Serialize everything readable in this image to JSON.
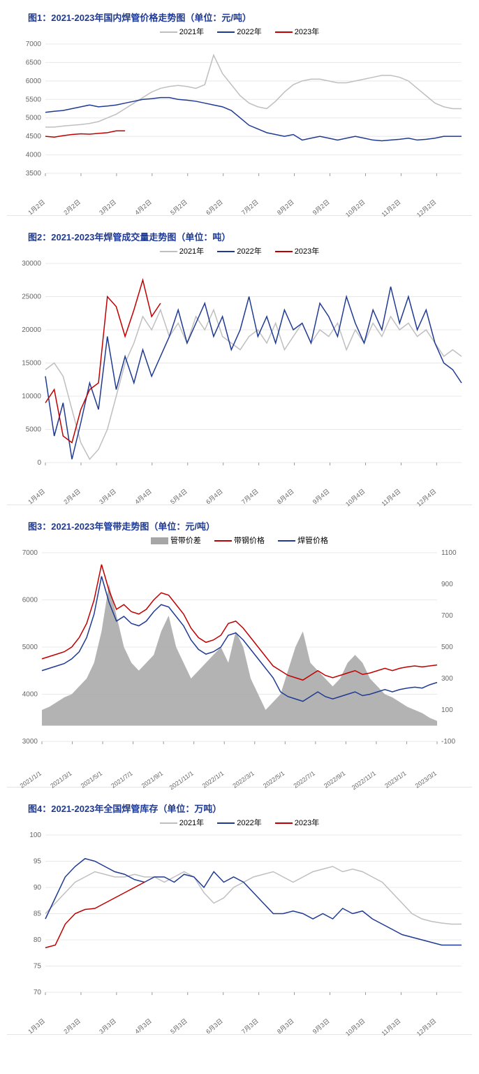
{
  "colors": {
    "title": "#1f3a93",
    "grid": "#e8e8e8",
    "axis_text": "#666666",
    "s2021": "#bfbfbf",
    "s2022": "#1f3a93",
    "s2023": "#c00000",
    "area_fill": "#a6a6a6",
    "red_line": "#c00000",
    "blue_line": "#1f3a93"
  },
  "chart1": {
    "title": "图1：2021-2023年国内焊管价格走势图（单位：元/吨）",
    "type": "line",
    "legend": [
      "2021年",
      "2022年",
      "2023年"
    ],
    "legend_colors": [
      "#bfbfbf",
      "#1f3a93",
      "#c00000"
    ],
    "ylim": [
      3500,
      7000
    ],
    "ytick_step": 500,
    "xlabels": [
      "1月2日",
      "2月2日",
      "3月2日",
      "4月2日",
      "5月2日",
      "6月2日",
      "7月2日",
      "8月2日",
      "9月2日",
      "10月2日",
      "11月2日",
      "12月2日"
    ],
    "series": {
      "2021": [
        4750,
        4750,
        4780,
        4800,
        4820,
        4850,
        4900,
        5000,
        5100,
        5250,
        5400,
        5550,
        5700,
        5800,
        5850,
        5880,
        5850,
        5800,
        5900,
        6700,
        6200,
        5900,
        5600,
        5400,
        5300,
        5250,
        5450,
        5700,
        5900,
        6000,
        6050,
        6050,
        6000,
        5950,
        5950,
        6000,
        6050,
        6100,
        6150,
        6150,
        6100,
        6000,
        5800,
        5600,
        5400,
        5300,
        5250,
        5250
      ],
      "2022": [
        5150,
        5180,
        5200,
        5250,
        5300,
        5350,
        5300,
        5320,
        5350,
        5400,
        5450,
        5500,
        5520,
        5550,
        5550,
        5500,
        5480,
        5450,
        5400,
        5350,
        5300,
        5200,
        5000,
        4800,
        4700,
        4600,
        4550,
        4500,
        4550,
        4400,
        4450,
        4500,
        4450,
        4400,
        4450,
        4500,
        4450,
        4400,
        4380,
        4400,
        4420,
        4450,
        4400,
        4420,
        4450,
        4500,
        4500,
        4500
      ],
      "2023": [
        4500,
        4480,
        4520,
        4550,
        4570,
        4560,
        4580,
        4600,
        4650,
        4650
      ]
    },
    "title_fontsize": 13,
    "label_fontsize": 10,
    "background_color": "#ffffff",
    "grid_color": "#e8e8e8",
    "line_width": 1.5
  },
  "chart2": {
    "title": "图2：2021-2023年焊管成交量走势图（单位：吨）",
    "type": "line",
    "legend": [
      "2021年",
      "2022年",
      "2023年"
    ],
    "legend_colors": [
      "#bfbfbf",
      "#1f3a93",
      "#c00000"
    ],
    "ylim": [
      0,
      30000
    ],
    "ytick_step": 5000,
    "xlabels": [
      "1月4日",
      "2月4日",
      "3月4日",
      "4月4日",
      "5月4日",
      "6月4日",
      "7月4日",
      "8月4日",
      "9月4日",
      "10月4日",
      "11月4日",
      "12月4日"
    ],
    "series": {
      "2021": [
        14000,
        15000,
        13000,
        8000,
        3000,
        500,
        2000,
        5000,
        10000,
        15000,
        18000,
        22000,
        20000,
        23000,
        19000,
        21000,
        18000,
        22000,
        20000,
        23000,
        19000,
        18000,
        17000,
        19000,
        20000,
        18000,
        21000,
        17000,
        19000,
        21000,
        18000,
        20000,
        19000,
        21000,
        17000,
        20000,
        18000,
        21000,
        19000,
        22000,
        20000,
        21000,
        19000,
        20000,
        18000,
        16000,
        17000,
        16000
      ],
      "2022": [
        13000,
        4000,
        9000,
        500,
        6000,
        12000,
        8000,
        19000,
        11000,
        16000,
        12000,
        17000,
        13000,
        16000,
        19000,
        23000,
        18000,
        21000,
        24000,
        19000,
        22000,
        17000,
        20000,
        25000,
        19000,
        22000,
        18000,
        23000,
        20000,
        21000,
        18000,
        24000,
        22000,
        19000,
        25000,
        21000,
        18000,
        23000,
        20000,
        26500,
        21000,
        25000,
        20000,
        23000,
        18000,
        15000,
        14000,
        12000
      ],
      "2023": [
        9000,
        11000,
        4000,
        3000,
        8000,
        11000,
        12000,
        25000,
        23500,
        19000,
        23000,
        27500,
        22000,
        24000
      ]
    },
    "title_fontsize": 13,
    "label_fontsize": 10,
    "background_color": "#ffffff",
    "grid_color": "#e8e8e8",
    "line_width": 1.5
  },
  "chart3": {
    "title": "图3：2021-2023年管带走势图（单位：元/吨）",
    "type": "line_with_area",
    "legend": [
      "管带价差",
      "带钢价格",
      "焊管价格"
    ],
    "legend_colors": [
      "#a6a6a6",
      "#c00000",
      "#1f3a93"
    ],
    "legend_types": [
      "area",
      "line",
      "line"
    ],
    "ylim_left": [
      3000,
      7000
    ],
    "ytick_step_left": 1000,
    "ylim_right": [
      -100,
      1100
    ],
    "ytick_step_right": 200,
    "xlabels": [
      "2021/1/1",
      "2021/3/1",
      "2021/5/1",
      "2021/7/1",
      "2021/9/1",
      "2021/11/1",
      "2022/1/1",
      "2022/3/1",
      "2022/5/1",
      "2022/7/1",
      "2022/9/1",
      "2022/11/1",
      "2023/1/1",
      "2023/3/1"
    ],
    "series": {
      "area": [
        100,
        120,
        150,
        180,
        200,
        250,
        300,
        400,
        600,
        900,
        700,
        500,
        400,
        350,
        400,
        450,
        600,
        700,
        500,
        400,
        300,
        350,
        400,
        450,
        500,
        400,
        600,
        500,
        300,
        200,
        100,
        150,
        200,
        350,
        500,
        600,
        400,
        350,
        300,
        250,
        300,
        400,
        450,
        400,
        300,
        250,
        200,
        180,
        150,
        120,
        100,
        80,
        50,
        30
      ],
      "red": [
        4750,
        4800,
        4850,
        4900,
        5000,
        5200,
        5500,
        6000,
        6750,
        6200,
        5800,
        5900,
        5750,
        5700,
        5800,
        6000,
        6150,
        6100,
        5900,
        5700,
        5400,
        5200,
        5100,
        5150,
        5250,
        5500,
        5550,
        5400,
        5200,
        5000,
        4800,
        4600,
        4500,
        4400,
        4350,
        4300,
        4400,
        4500,
        4400,
        4350,
        4400,
        4450,
        4500,
        4420,
        4450,
        4500,
        4550,
        4500,
        4550,
        4580,
        4600,
        4580,
        4600,
        4620
      ],
      "blue": [
        4500,
        4550,
        4600,
        4650,
        4750,
        4900,
        5200,
        5700,
        6500,
        5950,
        5550,
        5650,
        5500,
        5450,
        5550,
        5750,
        5900,
        5850,
        5650,
        5450,
        5150,
        4950,
        4850,
        4900,
        5000,
        5250,
        5300,
        5150,
        4950,
        4750,
        4550,
        4350,
        4050,
        3950,
        3900,
        3850,
        3950,
        4050,
        3950,
        3900,
        3950,
        4000,
        4050,
        3970,
        4000,
        4050,
        4100,
        4050,
        4100,
        4130,
        4150,
        4130,
        4200,
        4250
      ]
    },
    "title_fontsize": 13,
    "label_fontsize": 10,
    "background_color": "#ffffff",
    "grid_color": "#e8e8e8",
    "line_width": 1.5
  },
  "chart4": {
    "title": "图4：2021-2023年全国焊管库存（单位：万吨）",
    "type": "line",
    "legend": [
      "2021年",
      "2022年",
      "2023年"
    ],
    "legend_colors": [
      "#bfbfbf",
      "#1f3a93",
      "#c00000"
    ],
    "ylim": [
      70,
      100
    ],
    "ytick_step": 5,
    "xlabels": [
      "1月3日",
      "2月3日",
      "3月3日",
      "4月3日",
      "5月3日",
      "6月3日",
      "7月3日",
      "8月3日",
      "9月3日",
      "10月3日",
      "11月3日",
      "12月3日"
    ],
    "series": {
      "2021": [
        85,
        87,
        89,
        91,
        92,
        93,
        92.5,
        92,
        92,
        92.5,
        92,
        92,
        91,
        92,
        93,
        92,
        89,
        87,
        88,
        90,
        91,
        92,
        92.5,
        93,
        92,
        91,
        92,
        93,
        93.5,
        94,
        93,
        93.5,
        93,
        92,
        91,
        89,
        87,
        85,
        84,
        83.5,
        83.2,
        83,
        83
      ],
      "2022": [
        84,
        88,
        92,
        94,
        95.5,
        95,
        94,
        93,
        92.5,
        91.5,
        91,
        92,
        92,
        91,
        92.5,
        92,
        90,
        93,
        91,
        92,
        91,
        89,
        87,
        85,
        85,
        85.5,
        85,
        84,
        85,
        84,
        86,
        85,
        85.5,
        84,
        83,
        82,
        81,
        80.5,
        80,
        79.5,
        79,
        79,
        79
      ],
      "2023": [
        78.5,
        79,
        83,
        85,
        85.8,
        86,
        87,
        88,
        89,
        90,
        91
      ]
    },
    "title_fontsize": 13,
    "label_fontsize": 10,
    "background_color": "#ffffff",
    "grid_color": "#e8e8e8",
    "line_width": 1.5
  }
}
